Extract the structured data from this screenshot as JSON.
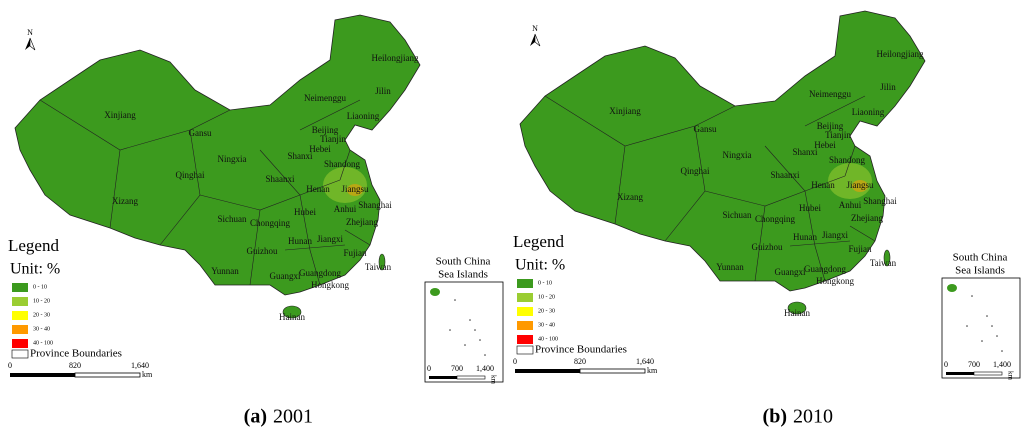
{
  "panels": [
    {
      "label": "(a)",
      "year": "2001",
      "north": "N",
      "legend": {
        "title": "Legend",
        "unit": "Unit: %",
        "classes": [
          {
            "label": "0 - 10",
            "color": "#3c9a1e"
          },
          {
            "label": "10 - 20",
            "color": "#9acd32"
          },
          {
            "label": "20 - 30",
            "color": "#ffff00"
          },
          {
            "label": "30 - 40",
            "color": "#ff9900"
          },
          {
            "label": "40 - 100",
            "color": "#ff0000"
          }
        ],
        "boundaries": "Province Boundaries"
      },
      "scale": {
        "ticks": [
          "0",
          "820",
          "1,640"
        ],
        "unit": "km"
      },
      "inset": {
        "title": [
          "South China",
          "Sea Islands"
        ],
        "ticks": [
          "0",
          "700",
          "1,400"
        ],
        "unit": "km"
      },
      "provinces": [
        "Heilongjiang",
        "Jilin",
        "Neimenggu",
        "Liaoning",
        "Xinjiang",
        "Gansu",
        "Beijing",
        "Tianjin",
        "Hebei",
        "Ningxia",
        "Shanxi",
        "Shandong",
        "Qinghai",
        "Shaanxi",
        "Henan",
        "Jiangsu",
        "Shanghai",
        "Xizang",
        "Anhui",
        "Hubei",
        "Sichuan",
        "Chongqing",
        "Zhejiang",
        "Jiangxi",
        "Hunan",
        "Guizhou",
        "Fujian",
        "Taiwan",
        "Yunnan",
        "Guangxi",
        "Guangdong",
        "Hongkong",
        "Hainan"
      ]
    },
    {
      "label": "(b)",
      "year": "2010",
      "north": "N",
      "legend": {
        "title": "Legend",
        "unit": "Unit: %",
        "classes": [
          {
            "label": "0 - 10",
            "color": "#3c9a1e"
          },
          {
            "label": "10 - 20",
            "color": "#9acd32"
          },
          {
            "label": "20 - 30",
            "color": "#ffff00"
          },
          {
            "label": "30 - 40",
            "color": "#ff9900"
          },
          {
            "label": "40 - 100",
            "color": "#ff0000"
          }
        ],
        "boundaries": "Province Boundaries"
      },
      "scale": {
        "ticks": [
          "0",
          "820",
          "1,640"
        ],
        "unit": "km"
      },
      "inset": {
        "title": [
          "South China",
          "Sea Islands"
        ],
        "ticks": [
          "0",
          "700",
          "1,400"
        ],
        "unit": "km"
      },
      "provinces": [
        "Heilongjiang",
        "Jilin",
        "Neimenggu",
        "Liaoning",
        "Xinjiang",
        "Gansu",
        "Beijing",
        "Tianjin",
        "Hebei",
        "Ningxia",
        "Shanxi",
        "Shandong",
        "Qinghai",
        "Shaanxi",
        "Henan",
        "Jiangsu",
        "Shanghai",
        "Xizang",
        "Anhui",
        "Hubei",
        "Sichuan",
        "Chongqing",
        "Zhejiang",
        "Jiangxi",
        "Hunan",
        "Guizhou",
        "Fujian",
        "Taiwan",
        "Yunnan",
        "Guangxi",
        "Guangdong",
        "Hongkong",
        "Hainan"
      ]
    }
  ]
}
